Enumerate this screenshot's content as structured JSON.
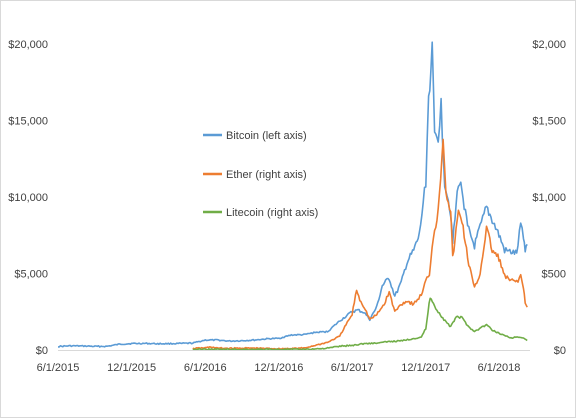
{
  "chart_data": {
    "type": "line",
    "title": "",
    "xlabel": "",
    "ylabel": "",
    "y2label": "",
    "grid": false,
    "legend_position": "center-left",
    "x_ticks": [
      "6/1/2015",
      "12/1/2015",
      "6/1/2016",
      "12/1/2016",
      "6/1/2017",
      "12/1/2017",
      "6/1/2018"
    ],
    "x_range": [
      "2015-06-01",
      "2018-08-10"
    ],
    "y_left": {
      "ticks": [
        "$0",
        "$5,000",
        "$10,000",
        "$15,000",
        "$20,000"
      ],
      "range": [
        0,
        20000
      ]
    },
    "y_right": {
      "ticks": [
        "$0",
        "$500",
        "$1,000",
        "$1,500",
        "$2,000"
      ],
      "range": [
        0,
        2000
      ]
    },
    "series": [
      {
        "name": "Bitcoin (left axis)",
        "axis": "left",
        "color": "#5B9BD5",
        "points": [
          [
            "2015-06-01",
            230
          ],
          [
            "2015-07-01",
            270
          ],
          [
            "2015-08-01",
            260
          ],
          [
            "2015-09-01",
            235
          ],
          [
            "2015-10-01",
            240
          ],
          [
            "2015-11-01",
            380
          ],
          [
            "2015-12-01",
            420
          ],
          [
            "2016-01-01",
            430
          ],
          [
            "2016-02-01",
            410
          ],
          [
            "2016-03-01",
            415
          ],
          [
            "2016-04-01",
            425
          ],
          [
            "2016-05-01",
            450
          ],
          [
            "2016-06-01",
            650
          ],
          [
            "2016-07-01",
            650
          ],
          [
            "2016-08-01",
            580
          ],
          [
            "2016-09-01",
            610
          ],
          [
            "2016-10-01",
            650
          ],
          [
            "2016-11-01",
            730
          ],
          [
            "2016-12-01",
            760
          ],
          [
            "2017-01-01",
            980
          ],
          [
            "2017-02-01",
            1000
          ],
          [
            "2017-03-01",
            1150
          ],
          [
            "2017-04-01",
            1200
          ],
          [
            "2017-05-01",
            1900
          ],
          [
            "2017-06-01",
            2500
          ],
          [
            "2017-06-15",
            2600
          ],
          [
            "2017-07-01",
            2450
          ],
          [
            "2017-07-15",
            2000
          ],
          [
            "2017-08-01",
            2800
          ],
          [
            "2017-08-15",
            4200
          ],
          [
            "2017-09-01",
            4700
          ],
          [
            "2017-09-15",
            3500
          ],
          [
            "2017-10-01",
            4400
          ],
          [
            "2017-10-15",
            5700
          ],
          [
            "2017-11-01",
            6500
          ],
          [
            "2017-11-15",
            7500
          ],
          [
            "2017-12-01",
            11000
          ],
          [
            "2017-12-08",
            16500
          ],
          [
            "2017-12-17",
            19500
          ],
          [
            "2017-12-23",
            14000
          ],
          [
            "2018-01-01",
            14000
          ],
          [
            "2018-01-08",
            16000
          ],
          [
            "2018-01-17",
            11000
          ],
          [
            "2018-02-01",
            9000
          ],
          [
            "2018-02-06",
            7000
          ],
          [
            "2018-02-20",
            11000
          ],
          [
            "2018-03-01",
            10500
          ],
          [
            "2018-03-15",
            8000
          ],
          [
            "2018-04-01",
            6800
          ],
          [
            "2018-04-15",
            8000
          ],
          [
            "2018-05-01",
            9300
          ],
          [
            "2018-05-15",
            8500
          ],
          [
            "2018-06-01",
            7500
          ],
          [
            "2018-06-15",
            6500
          ],
          [
            "2018-07-01",
            6400
          ],
          [
            "2018-07-15",
            6300
          ],
          [
            "2018-07-25",
            8200
          ],
          [
            "2018-08-01",
            7500
          ],
          [
            "2018-08-05",
            6500
          ],
          [
            "2018-08-10",
            6900
          ]
        ]
      },
      {
        "name": "Ether (right axis)",
        "axis": "right",
        "color": "#ED7D31",
        "points": [
          [
            "2016-05-01",
            10
          ],
          [
            "2016-06-01",
            14
          ],
          [
            "2016-06-15",
            20
          ],
          [
            "2016-07-01",
            12
          ],
          [
            "2016-08-01",
            11
          ],
          [
            "2016-09-01",
            12
          ],
          [
            "2016-10-01",
            12
          ],
          [
            "2016-11-01",
            10
          ],
          [
            "2016-12-01",
            8
          ],
          [
            "2017-01-01",
            10
          ],
          [
            "2017-02-01",
            12
          ],
          [
            "2017-03-01",
            30
          ],
          [
            "2017-04-01",
            50
          ],
          [
            "2017-05-01",
            90
          ],
          [
            "2017-05-20",
            180
          ],
          [
            "2017-06-01",
            230
          ],
          [
            "2017-06-12",
            395
          ],
          [
            "2017-06-20",
            330
          ],
          [
            "2017-07-01",
            280
          ],
          [
            "2017-07-15",
            200
          ],
          [
            "2017-08-01",
            230
          ],
          [
            "2017-08-20",
            300
          ],
          [
            "2017-09-01",
            380
          ],
          [
            "2017-09-15",
            250
          ],
          [
            "2017-10-01",
            300
          ],
          [
            "2017-10-15",
            320
          ],
          [
            "2017-11-01",
            300
          ],
          [
            "2017-11-20",
            360
          ],
          [
            "2017-12-01",
            450
          ],
          [
            "2017-12-10",
            500
          ],
          [
            "2017-12-20",
            750
          ],
          [
            "2018-01-01",
            900
          ],
          [
            "2018-01-13",
            1400
          ],
          [
            "2018-01-20",
            1050
          ],
          [
            "2018-02-01",
            900
          ],
          [
            "2018-02-06",
            600
          ],
          [
            "2018-02-20",
            900
          ],
          [
            "2018-03-01",
            850
          ],
          [
            "2018-03-15",
            600
          ],
          [
            "2018-04-01",
            400
          ],
          [
            "2018-04-15",
            500
          ],
          [
            "2018-05-01",
            800
          ],
          [
            "2018-05-15",
            650
          ],
          [
            "2018-06-01",
            600
          ],
          [
            "2018-06-15",
            480
          ],
          [
            "2018-07-01",
            450
          ],
          [
            "2018-07-15",
            450
          ],
          [
            "2018-07-25",
            480
          ],
          [
            "2018-08-01",
            410
          ],
          [
            "2018-08-05",
            300
          ],
          [
            "2018-08-10",
            280
          ]
        ]
      },
      {
        "name": "Litecoin (right axis)",
        "axis": "right",
        "color": "#70AD47",
        "points": [
          [
            "2016-05-01",
            4
          ],
          [
            "2016-06-01",
            5
          ],
          [
            "2016-07-01",
            4
          ],
          [
            "2016-08-01",
            4
          ],
          [
            "2016-09-01",
            4
          ],
          [
            "2016-10-01",
            4
          ],
          [
            "2016-11-01",
            4
          ],
          [
            "2016-12-01",
            4
          ],
          [
            "2017-01-01",
            4
          ],
          [
            "2017-02-01",
            4
          ],
          [
            "2017-03-01",
            7
          ],
          [
            "2017-04-01",
            12
          ],
          [
            "2017-05-01",
            25
          ],
          [
            "2017-06-01",
            30
          ],
          [
            "2017-07-01",
            42
          ],
          [
            "2017-08-01",
            45
          ],
          [
            "2017-09-01",
            55
          ],
          [
            "2017-10-01",
            60
          ],
          [
            "2017-11-01",
            75
          ],
          [
            "2017-11-20",
            85
          ],
          [
            "2017-12-01",
            140
          ],
          [
            "2017-12-12",
            350
          ],
          [
            "2017-12-20",
            300
          ],
          [
            "2018-01-01",
            250
          ],
          [
            "2018-01-15",
            200
          ],
          [
            "2018-02-01",
            150
          ],
          [
            "2018-02-15",
            220
          ],
          [
            "2018-03-01",
            210
          ],
          [
            "2018-03-15",
            160
          ],
          [
            "2018-04-01",
            120
          ],
          [
            "2018-04-20",
            150
          ],
          [
            "2018-05-01",
            165
          ],
          [
            "2018-05-15",
            130
          ],
          [
            "2018-06-01",
            110
          ],
          [
            "2018-06-15",
            95
          ],
          [
            "2018-07-01",
            80
          ],
          [
            "2018-07-25",
            85
          ],
          [
            "2018-08-01",
            75
          ],
          [
            "2018-08-10",
            62
          ]
        ]
      }
    ]
  }
}
